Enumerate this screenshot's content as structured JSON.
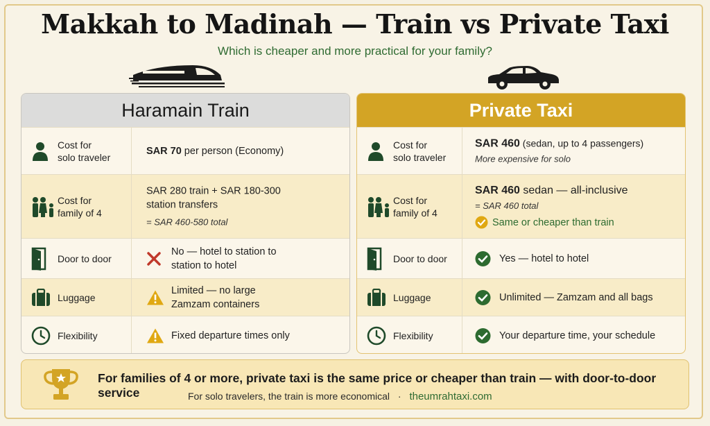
{
  "title": "Makkah to Madinah — Train vs Private Taxi",
  "subtitle": "Which is cheaper and more practical for your family?",
  "train": {
    "heading": "Haramain Train",
    "rows": [
      {
        "label1": "Cost for",
        "label2": "solo traveler",
        "icon": "person-icon",
        "price": "SAR 70",
        "text": " per person (Economy)"
      },
      {
        "label1": "Cost for",
        "label2": "family of 4",
        "icon": "family-icon",
        "line1": "SAR 280 train + SAR 180-300",
        "line2": "station transfers",
        "note": "= SAR 460-580 total"
      },
      {
        "label1": "Door to door",
        "icon": "door-icon",
        "status": "cross-icon",
        "line1": "No — hotel to station to",
        "line2": "station to hotel"
      },
      {
        "label1": "Luggage",
        "icon": "luggage-icon",
        "status": "warning-icon",
        "line1": "Limited — no large",
        "line2": "Zamzam containers"
      },
      {
        "label1": "Flexibility",
        "icon": "clock-icon",
        "status": "warning-icon",
        "line1": "Fixed departure times only"
      }
    ]
  },
  "taxi": {
    "heading": "Private Taxi",
    "rows": [
      {
        "label1": "Cost for",
        "label2": "solo traveler",
        "icon": "person-icon",
        "price": "SAR 460",
        "text": " (sedan, up to 4 passengers)",
        "note": "More expensive for solo"
      },
      {
        "label1": "Cost for",
        "label2": "family of 4",
        "icon": "family-icon",
        "price": "SAR 460",
        "text": " sedan — all-inclusive",
        "note": "= SAR 460 total",
        "highlight": "Same or cheaper than train"
      },
      {
        "label1": "Door to door",
        "icon": "door-icon",
        "status": "check-icon",
        "line1": "Yes — hotel to hotel"
      },
      {
        "label1": "Luggage",
        "icon": "luggage-icon",
        "status": "check-icon",
        "line1": "Unlimited — Zamzam and all bags"
      },
      {
        "label1": "Flexibility",
        "icon": "clock-icon",
        "status": "check-icon",
        "line1": "Your departure time, your schedule"
      }
    ]
  },
  "footer": {
    "main": "For families of 4 or more, private taxi is the same price or cheaper than train — with door-to-door service",
    "sub": "For solo travelers, the train is more economical",
    "sep": "·",
    "site": "theumrahtaxi.com"
  },
  "colors": {
    "accent": "#d3a425",
    "green": "#2d6b30",
    "cross": "#c0392b",
    "warning": "#e0a812"
  }
}
